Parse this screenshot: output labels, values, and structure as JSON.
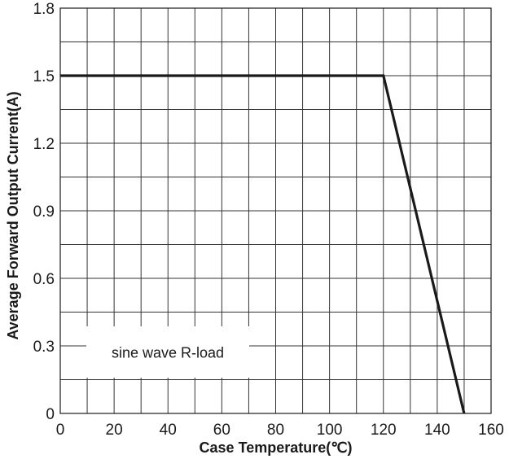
{
  "chart_data": {
    "type": "line",
    "title": "",
    "xlabel": "Case Temperature(℃)",
    "ylabel": "Average Forward Output Current(A)",
    "xlim": [
      0,
      160
    ],
    "ylim": [
      0,
      1.8
    ],
    "x_ticks": [
      0,
      20,
      40,
      60,
      80,
      100,
      120,
      140,
      160
    ],
    "x_tick_labels": [
      "0",
      "20",
      "40",
      "60",
      "80",
      "100",
      "120",
      "140",
      "160"
    ],
    "y_ticks": [
      0,
      0.3,
      0.6,
      0.9,
      1.2,
      1.5,
      1.8
    ],
    "y_tick_labels": [
      "0",
      "0.3",
      "0.6",
      "0.9",
      "1.2",
      "1.5",
      "1.8"
    ],
    "grid": true,
    "grid_x_step": 10,
    "grid_y_step": 0.15,
    "series": [
      {
        "x": [
          0,
          120,
          150
        ],
        "y": [
          1.5,
          1.5,
          0
        ],
        "color": "#1a1a1a"
      }
    ],
    "annotations": [
      {
        "text": "sine wave R-load",
        "x": 1,
        "y": 0.32
      }
    ]
  }
}
